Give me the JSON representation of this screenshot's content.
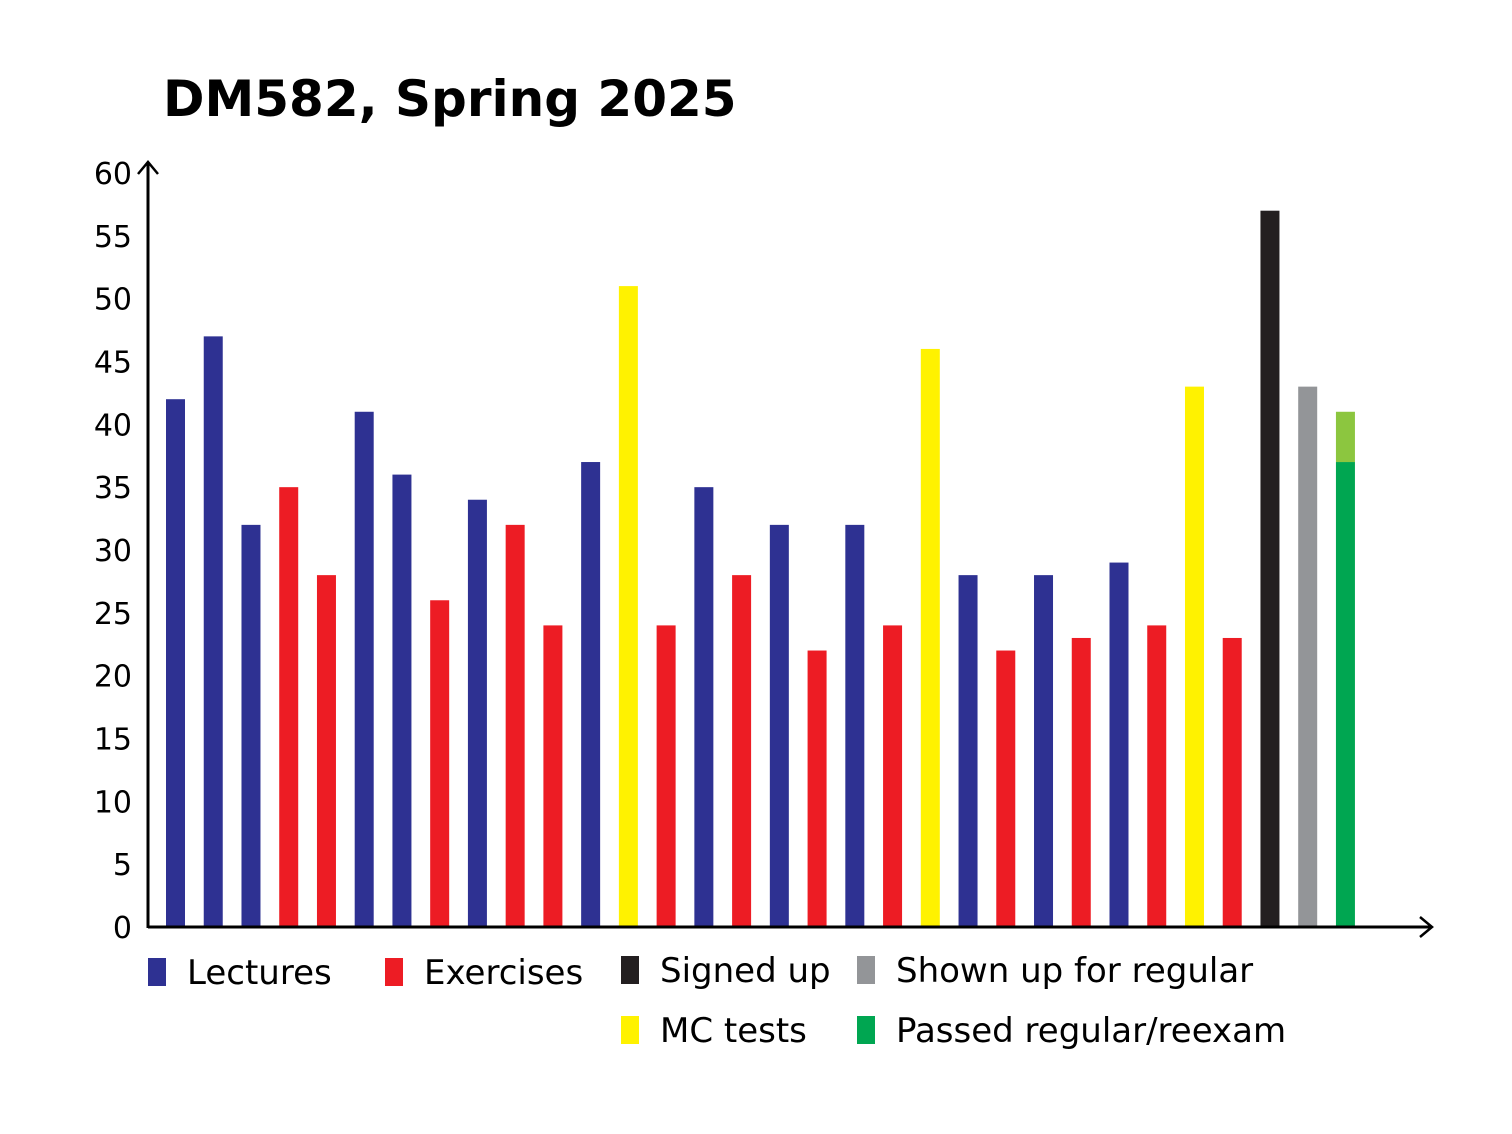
{
  "chart_data": {
    "type": "bar",
    "title": "DM582, Spring 2025",
    "xlabel": "",
    "ylabel": "",
    "ylim": [
      0,
      60
    ],
    "yticks": [
      "0",
      "5",
      "10",
      "15",
      "20",
      "25",
      "30",
      "35",
      "40",
      "45",
      "50",
      "55",
      "60"
    ],
    "grid": false,
    "legend_position": "bottom",
    "colors": {
      "lecture": "#2e3192",
      "exercise": "#ed1c24",
      "mc": "#fff200",
      "signed": "#231f20",
      "shown": "#939598",
      "passed": "#00a651",
      "passed_extra": "#8cc63f"
    },
    "legend": [
      {
        "key": "lecture",
        "label": "Lectures"
      },
      {
        "key": "exercise",
        "label": "Exercises"
      },
      {
        "key": "signed",
        "label": "Signed up"
      },
      {
        "key": "shown",
        "label": "Shown up for regular"
      },
      {
        "key": "mc",
        "label": "MC tests"
      },
      {
        "key": "passed",
        "label": "Passed regular/reexam"
      }
    ],
    "bars": [
      {
        "type": "lecture",
        "value": 42
      },
      {
        "type": "lecture",
        "value": 47
      },
      {
        "type": "lecture",
        "value": 32
      },
      {
        "type": "exercise",
        "value": 35
      },
      {
        "type": "exercise",
        "value": 28
      },
      {
        "type": "lecture",
        "value": 41
      },
      {
        "type": "lecture",
        "value": 36
      },
      {
        "type": "exercise",
        "value": 26
      },
      {
        "type": "lecture",
        "value": 34
      },
      {
        "type": "exercise",
        "value": 32
      },
      {
        "type": "exercise",
        "value": 24
      },
      {
        "type": "lecture",
        "value": 37
      },
      {
        "type": "mc",
        "value": 51
      },
      {
        "type": "exercise",
        "value": 24
      },
      {
        "type": "lecture",
        "value": 35
      },
      {
        "type": "exercise",
        "value": 28
      },
      {
        "type": "lecture",
        "value": 32
      },
      {
        "type": "exercise",
        "value": 22
      },
      {
        "type": "lecture",
        "value": 32
      },
      {
        "type": "exercise",
        "value": 24
      },
      {
        "type": "mc",
        "value": 46
      },
      {
        "type": "lecture",
        "value": 28
      },
      {
        "type": "exercise",
        "value": 22
      },
      {
        "type": "lecture",
        "value": 28
      },
      {
        "type": "exercise",
        "value": 23
      },
      {
        "type": "lecture",
        "value": 29
      },
      {
        "type": "exercise",
        "value": 24
      },
      {
        "type": "mc",
        "value": 43
      },
      {
        "type": "exercise",
        "value": 23
      },
      {
        "type": "signed",
        "value": 57
      },
      {
        "type": "shown",
        "value": 43
      },
      {
        "type": "passed",
        "value": 37,
        "extra": 4
      }
    ]
  }
}
